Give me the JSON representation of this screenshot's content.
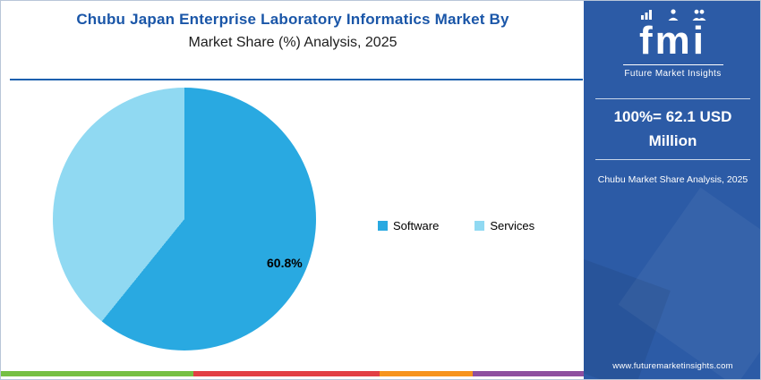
{
  "header": {
    "title_line1": "Chubu Japan Enterprise Laboratory Informatics Market By",
    "title_line2": "Market Share (%) Analysis, 2025"
  },
  "chart_data": {
    "type": "pie",
    "title": "Chubu Japan Enterprise Laboratory Informatics Market By Market Share (%) Analysis, 2025",
    "slices": [
      {
        "label": "Software",
        "value": 60.8,
        "color": "#29a9e1"
      },
      {
        "label": "Services",
        "value": 39.2,
        "color": "#90d9f2"
      }
    ],
    "annotation": "60.8%",
    "start_angle_deg": 0,
    "direction": "clockwise",
    "legend_position": "right",
    "total_note": "100%= 62.1 USD Million"
  },
  "sidebar": {
    "logo_text": "fmi",
    "logo_subtext": "Future Market Insights",
    "stat_line1": "100%= 62.1 USD",
    "stat_line2": "Million",
    "caption": "Chubu Market Share Analysis, 2025",
    "website": "www.futuremarketinsights.com",
    "bg_color": "#2c5ba6"
  },
  "footer": {
    "stripe_colors": [
      "#76c043",
      "#e23f44",
      "#f7941d",
      "#8e4f9f"
    ],
    "stripe_widths_pct": [
      33,
      32,
      16,
      19
    ]
  }
}
